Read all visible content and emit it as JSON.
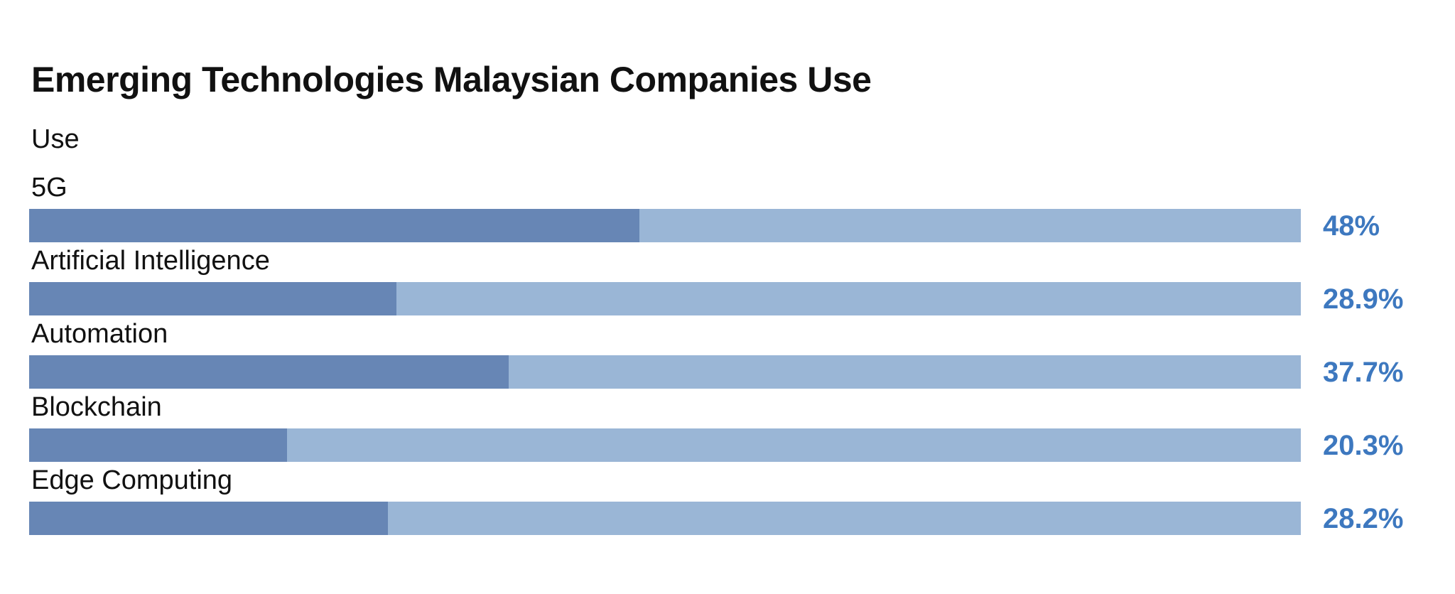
{
  "colors": {
    "filled": "#6786b5",
    "remainder": "#9ab6d6",
    "value_text": "#3d78bf"
  },
  "chart_data": {
    "type": "bar",
    "title": "Emerging Technologies Malaysian Companies Use",
    "subtitle": "Use",
    "categories": [
      "5G",
      "Artificial Intelligence",
      "Automation",
      "Blockchain",
      "Edge Computing"
    ],
    "values": [
      48,
      28.9,
      37.7,
      20.3,
      28.2
    ],
    "value_labels": [
      "48%",
      "28.9%",
      "37.7%",
      "20.3%",
      "28.2%"
    ],
    "ylim": [
      0,
      100
    ]
  }
}
